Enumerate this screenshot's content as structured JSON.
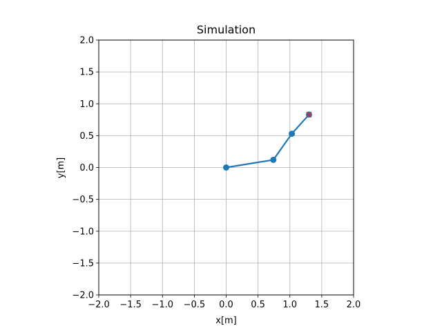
{
  "chart_data": {
    "type": "line",
    "title": "Simulation",
    "xlabel": "x[m]",
    "ylabel": "y[m]",
    "xlim": [
      -2.0,
      2.0
    ],
    "ylim": [
      -2.0,
      2.0
    ],
    "xticks": [
      "−2.0",
      "−1.5",
      "−1.0",
      "−0.5",
      "0.0",
      "0.5",
      "1.0",
      "1.5",
      "2.0"
    ],
    "yticks": [
      "−2.0",
      "−1.5",
      "−1.0",
      "−0.5",
      "0.0",
      "0.5",
      "1.0",
      "1.5",
      "2.0"
    ],
    "grid": true,
    "series": [
      {
        "color": "#1f77b4",
        "marker": "circle",
        "points": [
          [
            0.0,
            0.0
          ],
          [
            0.74,
            0.12
          ],
          [
            1.03,
            0.53
          ],
          [
            1.3,
            0.83
          ]
        ]
      }
    ],
    "target": {
      "color": "#d62728",
      "marker": "x",
      "point": [
        1.3,
        0.83
      ]
    }
  }
}
